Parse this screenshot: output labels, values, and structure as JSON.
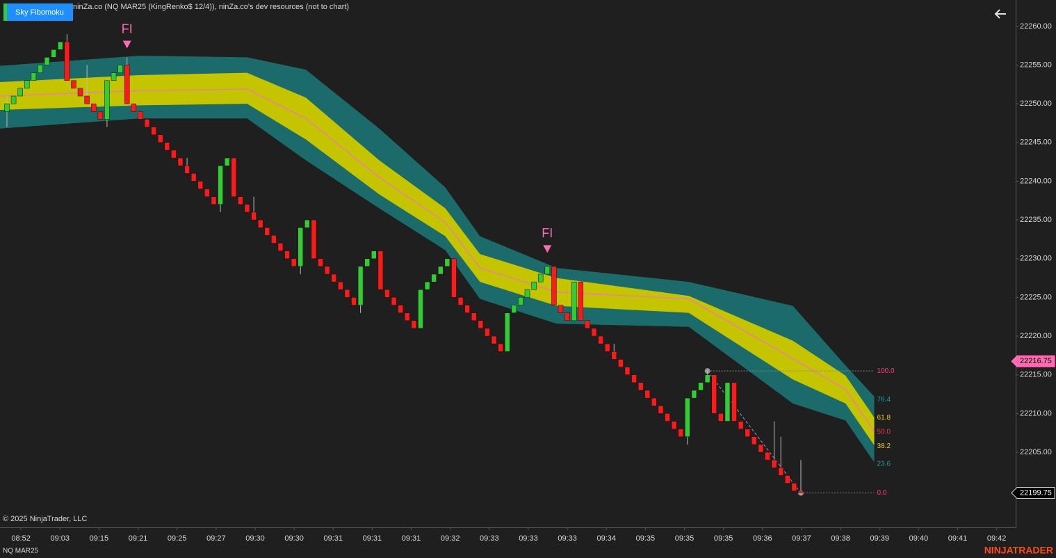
{
  "header": {
    "instrument_text": "ninZa.co (NQ MAR25 (KingRenko$ 12/4)), ninZa.co's dev resources (not to chart)",
    "button": "Sky Fibomoku"
  },
  "footer": {
    "copyright": "© 2025 NinjaTrader, LLC",
    "instrument": "NQ MAR25",
    "brand": "NINJATRADER"
  },
  "chart_data": {
    "type": "candlestick",
    "up_color": "#32cd32",
    "down_color": "#ff1a1a",
    "xlim": [
      -1.04,
      151.2
    ],
    "xticks": [
      {
        "value": 2.1,
        "label": "08:52"
      },
      {
        "value": 7.95,
        "label": "09:03"
      },
      {
        "value": 13.8,
        "label": "09:15"
      },
      {
        "value": 19.65,
        "label": "09:21"
      },
      {
        "value": 25.5,
        "label": "09:25"
      },
      {
        "value": 31.35,
        "label": "09:27"
      },
      {
        "value": 37.2,
        "label": "09:30"
      },
      {
        "value": 43.05,
        "label": "09:30"
      },
      {
        "value": 48.9,
        "label": "09:31"
      },
      {
        "value": 54.75,
        "label": "09:31"
      },
      {
        "value": 60.6,
        "label": "09:31"
      },
      {
        "value": 66.45,
        "label": "09:32"
      },
      {
        "value": 72.3,
        "label": "09:33"
      },
      {
        "value": 78.15,
        "label": "09:33"
      },
      {
        "value": 84,
        "label": "09:33"
      },
      {
        "value": 89.85,
        "label": "09:34"
      },
      {
        "value": 95.7,
        "label": "09:35"
      },
      {
        "value": 101.55,
        "label": "09:35"
      },
      {
        "value": 107.4,
        "label": "09:35"
      },
      {
        "value": 113.25,
        "label": "09:36"
      },
      {
        "value": 119.1,
        "label": "09:37"
      },
      {
        "value": 124.95,
        "label": "09:38"
      },
      {
        "value": 130.8,
        "label": "09:39"
      },
      {
        "value": 136.65,
        "label": "09:40"
      },
      {
        "value": 142.5,
        "label": "09:41"
      },
      {
        "value": 148.35,
        "label": "09:42"
      }
    ],
    "ylim": [
      22195.3,
      22263.4
    ],
    "yticks": [
      {
        "value": 22205,
        "label": "22205.00"
      },
      {
        "value": 22210,
        "label": "22210.00"
      },
      {
        "value": 22215,
        "label": "22215.00"
      },
      {
        "value": 22220,
        "label": "22220.00"
      },
      {
        "value": 22225,
        "label": "22225.00"
      },
      {
        "value": 22230,
        "label": "22230.00"
      },
      {
        "value": 22235,
        "label": "22235.00"
      },
      {
        "value": 22240,
        "label": "22240.00"
      },
      {
        "value": 22245,
        "label": "22245.00"
      },
      {
        "value": 22250,
        "label": "22250.00"
      },
      {
        "value": 22255,
        "label": "22255.00"
      },
      {
        "value": 22260,
        "label": "22260.00"
      }
    ],
    "candles": [
      [
        22249,
        22251,
        22247,
        22250
      ],
      [
        22250,
        22251,
        22250,
        22251
      ],
      [
        22251,
        22252,
        22251,
        22252
      ],
      [
        22252,
        22253,
        22252,
        22253
      ],
      [
        22253,
        22254,
        22253,
        22254
      ],
      [
        22254,
        22255,
        22254,
        22255
      ],
      [
        22255,
        22256,
        22255,
        22256
      ],
      [
        22256,
        22257,
        22256,
        22257
      ],
      [
        22257,
        22258,
        22257,
        22258
      ],
      [
        22258,
        22259,
        22253,
        22253
      ],
      [
        22253,
        22253,
        22252,
        22252
      ],
      [
        22252,
        22252,
        22251,
        22251
      ],
      [
        22251,
        22255,
        22250,
        22250
      ],
      [
        22250,
        22250,
        22249,
        22249
      ],
      [
        22249,
        22249,
        22248,
        22248
      ],
      [
        22248,
        22253,
        22247,
        22253
      ],
      [
        22253,
        22254,
        22253,
        22254
      ],
      [
        22254,
        22255,
        22254,
        22255
      ],
      [
        22255,
        22256,
        22250,
        22250
      ],
      [
        22250,
        22250,
        22249,
        22249
      ],
      [
        22249,
        22249,
        22248,
        22248
      ],
      [
        22248,
        22248,
        22247,
        22247
      ],
      [
        22247,
        22247,
        22246,
        22246
      ],
      [
        22246,
        22246,
        22245,
        22245
      ],
      [
        22245,
        22245,
        22244,
        22244
      ],
      [
        22244,
        22244,
        22243,
        22243
      ],
      [
        22243,
        22243,
        22242,
        22242
      ],
      [
        22242,
        22243,
        22241,
        22241
      ],
      [
        22241,
        22241,
        22240,
        22240
      ],
      [
        22240,
        22240,
        22239,
        22239
      ],
      [
        22239,
        22239,
        22238,
        22238
      ],
      [
        22238,
        22238,
        22237,
        22237
      ],
      [
        22237,
        22242,
        22236,
        22242
      ],
      [
        22242,
        22243,
        22242,
        22243
      ],
      [
        22243,
        22243,
        22238,
        22238
      ],
      [
        22238,
        22238,
        22237,
        22237
      ],
      [
        22237,
        22237,
        22236,
        22236
      ],
      [
        22236,
        22238,
        22235,
        22235
      ],
      [
        22235,
        22235,
        22234,
        22234
      ],
      [
        22234,
        22234,
        22233,
        22233
      ],
      [
        22233,
        22233,
        22232,
        22232
      ],
      [
        22232,
        22232,
        22231,
        22231
      ],
      [
        22231,
        22231,
        22230,
        22230
      ],
      [
        22230,
        22230,
        22229,
        22229
      ],
      [
        22229,
        22234,
        22228,
        22234
      ],
      [
        22234,
        22235,
        22234,
        22235
      ],
      [
        22235,
        22235,
        22230,
        22230
      ],
      [
        22230,
        22230,
        22229,
        22229
      ],
      [
        22229,
        22229,
        22228,
        22228
      ],
      [
        22228,
        22228,
        22227,
        22227
      ],
      [
        22227,
        22227,
        22226,
        22226
      ],
      [
        22226,
        22226,
        22225,
        22225
      ],
      [
        22225,
        22225,
        22224,
        22224
      ],
      [
        22224,
        22229,
        22223,
        22229
      ],
      [
        22229,
        22230,
        22229,
        22230
      ],
      [
        22230,
        22231,
        22230,
        22231
      ],
      [
        22231,
        22231,
        22226,
        22226
      ],
      [
        22226,
        22226,
        22225,
        22225
      ],
      [
        22225,
        22225,
        22224,
        22224
      ],
      [
        22224,
        22224,
        22223,
        22223
      ],
      [
        22223,
        22223,
        22222,
        22222
      ],
      [
        22222,
        22222,
        22221,
        22221
      ],
      [
        22221,
        22226,
        22221,
        22226
      ],
      [
        22226,
        22227,
        22226,
        22227
      ],
      [
        22227,
        22228,
        22227,
        22228
      ],
      [
        22228,
        22229,
        22228,
        22229
      ],
      [
        22229,
        22230,
        22229,
        22230
      ],
      [
        22230,
        22230,
        22225,
        22225
      ],
      [
        22225,
        22225,
        22224,
        22224
      ],
      [
        22224,
        22224,
        22223,
        22223
      ],
      [
        22223,
        22223,
        22222,
        22222
      ],
      [
        22222,
        22222,
        22221,
        22221
      ],
      [
        22221,
        22221,
        22220,
        22220
      ],
      [
        22220,
        22220,
        22219,
        22219
      ],
      [
        22219,
        22219,
        22218,
        22218
      ],
      [
        22218,
        22223,
        22218,
        22223
      ],
      [
        22223,
        22224,
        22223,
        22224
      ],
      [
        22224,
        22225,
        22224,
        22225
      ],
      [
        22225,
        22226,
        22225,
        22226
      ],
      [
        22226,
        22227,
        22226,
        22227
      ],
      [
        22227,
        22228,
        22227,
        22228
      ],
      [
        22228,
        22229,
        22228,
        22229
      ],
      [
        22229,
        22229,
        22224,
        22224
      ],
      [
        22224,
        22224,
        22223,
        22223
      ],
      [
        22223,
        22223,
        22222,
        22222
      ],
      [
        22222,
        22227,
        22222,
        22227
      ],
      [
        22227,
        22227,
        22222,
        22222
      ],
      [
        22222,
        22222,
        22221,
        22221
      ],
      [
        22221,
        22221,
        22220,
        22220
      ],
      [
        22220,
        22220,
        22219,
        22219
      ],
      [
        22219,
        22219,
        22218,
        22218
      ],
      [
        22218,
        22219,
        22217,
        22217
      ],
      [
        22217,
        22217,
        22216,
        22216
      ],
      [
        22216,
        22216,
        22215,
        22215
      ],
      [
        22215,
        22215,
        22214,
        22214
      ],
      [
        22214,
        22214,
        22213,
        22213
      ],
      [
        22213,
        22213,
        22212,
        22212
      ],
      [
        22212,
        22212,
        22211,
        22211
      ],
      [
        22211,
        22211,
        22210,
        22210
      ],
      [
        22210,
        22210,
        22209,
        22209
      ],
      [
        22209,
        22209,
        22208,
        22208
      ],
      [
        22208,
        22208,
        22207,
        22207
      ],
      [
        22207,
        22212,
        22206,
        22212
      ],
      [
        22212,
        22213,
        22212,
        22213
      ],
      [
        22213,
        22214,
        22213,
        22214
      ],
      [
        22214,
        22215.5,
        22214,
        22215
      ],
      [
        22215,
        22215,
        22210,
        22210
      ],
      [
        22210,
        22210,
        22209,
        22209
      ],
      [
        22209,
        22214,
        22209,
        22214
      ],
      [
        22214,
        22214,
        22209,
        22209
      ],
      [
        22209,
        22209,
        22208,
        22208
      ],
      [
        22208,
        22208,
        22207,
        22207
      ],
      [
        22207,
        22207,
        22206,
        22206
      ],
      [
        22206,
        22206,
        22205,
        22205
      ],
      [
        22205,
        22205,
        22204,
        22204
      ],
      [
        22204,
        22209,
        22203,
        22203
      ],
      [
        22203,
        22207,
        22202,
        22202
      ],
      [
        22202,
        22202,
        22201,
        22201
      ],
      [
        22201,
        22201,
        22200,
        22200
      ],
      [
        22200,
        22204,
        22199.5,
        22199.75
      ]
    ],
    "bands": {
      "x": [
        -1.04,
        19.8,
        36,
        44.8,
        55.8,
        65.7,
        70.9,
        82.4,
        102.2,
        117.8,
        125.7,
        130
      ],
      "upper_outer": [
        22254.9,
        22256.2,
        22256,
        22254.4,
        22246.8,
        22239.2,
        22232.9,
        22228.8,
        22227,
        22223.9,
        22216.2,
        22212.2
      ],
      "upper_inner": [
        22252.8,
        22253.7,
        22254,
        22250.8,
        22242.7,
        22236.5,
        22230.6,
        22227.5,
        22225.2,
        22219.4,
        22214.9,
        22209.5
      ],
      "mid": [
        22251,
        22251.7,
        22251.9,
        22248.1,
        22240.5,
        22234.7,
        22228.8,
        22225.7,
        22224.8,
        22217.1,
        22213.1,
        22207.7
      ],
      "lower_inner": [
        22249.2,
        22249.8,
        22250,
        22245.4,
        22238.3,
        22232.9,
        22227,
        22223.9,
        22223,
        22214.4,
        22211.3,
        22205.9
      ],
      "lower_outer": [
        22246.8,
        22248.1,
        22248.1,
        22242.7,
        22236.5,
        22231.1,
        22224.8,
        22221.6,
        22221.2,
        22211.3,
        22209.1,
        22203.7
      ],
      "outer_color": "#1c6b6b",
      "inner_color": "#c4c400",
      "mid_color": "#ee7fa8"
    },
    "signals": [
      {
        "index": 18,
        "price": 22257.6,
        "label": "FI"
      },
      {
        "index": 81,
        "price": 22231.2,
        "label": "FI"
      }
    ],
    "fib": {
      "from": 105,
      "to": 119,
      "high": 22215.5,
      "low": 22199.75,
      "levels": [
        {
          "value": 100,
          "label": "100.0",
          "color": "#ff3d8a"
        },
        {
          "value": 76.4,
          "label": "76.4",
          "color": "#1aa0a0"
        },
        {
          "value": 61.8,
          "label": "61.8",
          "color": "#f0d000"
        },
        {
          "value": 50,
          "label": "50.0",
          "color": "#ff3050"
        },
        {
          "value": 38.2,
          "label": "38.2",
          "color": "#f0d000"
        },
        {
          "value": 23.6,
          "label": "23.6",
          "color": "#1aa0a0"
        },
        {
          "value": 0,
          "label": "0.0",
          "color": "#ff3d8a"
        }
      ]
    },
    "price_labels": [
      {
        "value": 22216.75,
        "color": "#ff6ab0"
      },
      {
        "value": 22199.75,
        "color": "#000000"
      }
    ]
  }
}
